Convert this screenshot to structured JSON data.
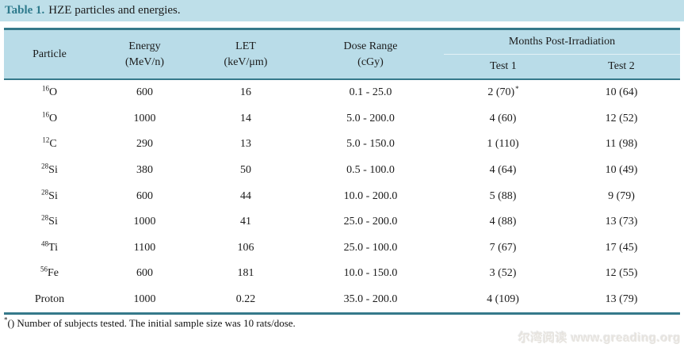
{
  "caption": {
    "label": "Table 1.",
    "text": "HZE particles and energies."
  },
  "colors": {
    "accent_teal": "#35798a",
    "caption_label_teal": "#2e7a8c",
    "header_bg": "#b9dce8",
    "caption_bg": "#bedfe9"
  },
  "table": {
    "headers": {
      "particle": "Particle",
      "energy_line1": "Energy",
      "energy_line2": "(MeV/n)",
      "let_line1": "LET",
      "let_line2": "(keV/μm)",
      "dose_line1": "Dose Range",
      "dose_line2": "(cGy)",
      "months_group": "Months Post-Irradiation",
      "test1": "Test 1",
      "test2": "Test 2"
    },
    "rows": [
      {
        "particle_sup": "16",
        "particle": "O",
        "energy": "600",
        "let": "16",
        "dose": "0.1 - 25.0",
        "test1": "2 (70)",
        "test1_note": "*",
        "test2": "10 (64)"
      },
      {
        "particle_sup": "16",
        "particle": "O",
        "energy": "1000",
        "let": "14",
        "dose": "5.0 - 200.0",
        "test1": "4 (60)",
        "test1_note": "",
        "test2": "12 (52)"
      },
      {
        "particle_sup": "12",
        "particle": "C",
        "energy": "290",
        "let": "13",
        "dose": "5.0 - 150.0",
        "test1": "1 (110)",
        "test1_note": "",
        "test2": "11 (98)"
      },
      {
        "particle_sup": "28",
        "particle": "Si",
        "energy": "380",
        "let": "50",
        "dose": "0.5 - 100.0",
        "test1": "4 (64)",
        "test1_note": "",
        "test2": "10 (49)"
      },
      {
        "particle_sup": "28",
        "particle": "Si",
        "energy": "600",
        "let": "44",
        "dose": "10.0 - 200.0",
        "test1": "5 (88)",
        "test1_note": "",
        "test2": "9 (79)"
      },
      {
        "particle_sup": "28",
        "particle": "Si",
        "energy": "1000",
        "let": "41",
        "dose": "25.0 - 200.0",
        "test1": "4 (88)",
        "test1_note": "",
        "test2": "13 (73)"
      },
      {
        "particle_sup": "48",
        "particle": "Ti",
        "energy": "1100",
        "let": "106",
        "dose": "25.0 - 100.0",
        "test1": "7 (67)",
        "test1_note": "",
        "test2": "17 (45)"
      },
      {
        "particle_sup": "56",
        "particle": "Fe",
        "energy": "600",
        "let": "181",
        "dose": "10.0 - 150.0",
        "test1": "3 (52)",
        "test1_note": "",
        "test2": "12 (55)"
      },
      {
        "particle_sup": "",
        "particle": "Proton",
        "energy": "1000",
        "let": "0.22",
        "dose": "35.0 - 200.0",
        "test1": "4 (109)",
        "test1_note": "",
        "test2": "13 (79)"
      }
    ]
  },
  "footnote": {
    "sup": "*",
    "text": "() Number of subjects tested. The initial sample size was 10 rats/dose."
  },
  "watermark": "尔湾阅读 www.greading.org"
}
